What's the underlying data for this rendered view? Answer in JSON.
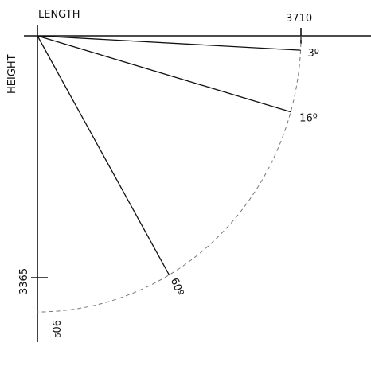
{
  "axes": {
    "x_title": "LENGTH",
    "y_title": "HEIGHT",
    "x_max_label": "3710",
    "y_max_label": "3365"
  },
  "rays": [
    {
      "angle": 3,
      "label": "3º"
    },
    {
      "angle": 16,
      "label": "16º"
    },
    {
      "angle": 60,
      "label": "60º"
    }
  ],
  "arc_end_label": "90º"
}
